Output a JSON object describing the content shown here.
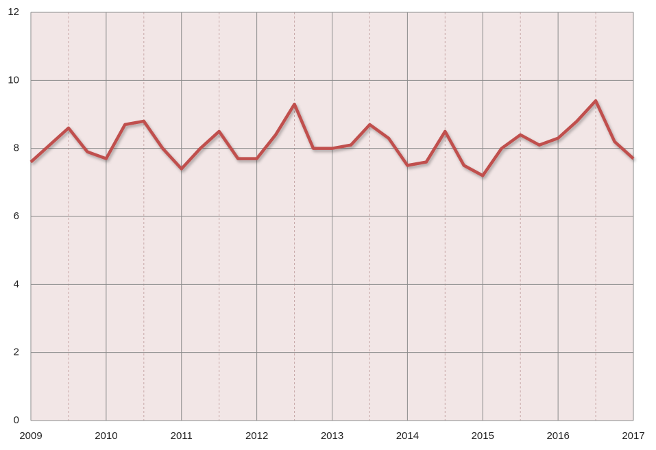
{
  "chart_data": {
    "type": "line",
    "x": [
      2009,
      2009.25,
      2009.5,
      2009.75,
      2010,
      2010.25,
      2010.5,
      2010.75,
      2011,
      2011.25,
      2011.5,
      2011.75,
      2012,
      2012.25,
      2012.5,
      2012.75,
      2013,
      2013.25,
      2013.5,
      2013.75,
      2014,
      2014.25,
      2014.5,
      2014.75,
      2015,
      2015.25,
      2015.5,
      2015.75,
      2016,
      2016.25,
      2016.5,
      2016.75,
      2017
    ],
    "values": [
      7.6,
      8.1,
      8.6,
      7.9,
      7.7,
      8.7,
      8.8,
      8.0,
      7.4,
      8.0,
      8.5,
      7.7,
      7.7,
      8.4,
      9.3,
      8.0,
      8.0,
      8.1,
      8.7,
      8.3,
      7.5,
      7.6,
      8.5,
      7.5,
      7.2,
      8.0,
      8.4,
      8.1,
      8.3,
      8.8,
      9.4,
      8.2,
      7.7
    ],
    "color": "#c0504d",
    "xlim": [
      2009,
      2017
    ],
    "xticks": [
      2009,
      2010,
      2011,
      2012,
      2013,
      2014,
      2015,
      2016,
      2017
    ],
    "ylim": [
      0,
      12
    ],
    "yticks": [
      0,
      2,
      4,
      6,
      8,
      10,
      12
    ],
    "grid": true
  }
}
